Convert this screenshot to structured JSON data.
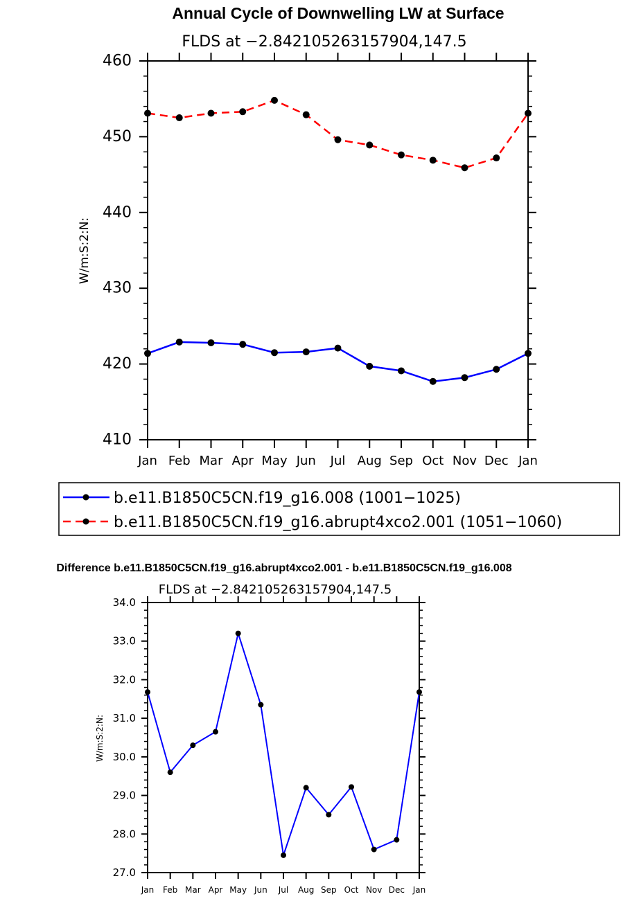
{
  "chart_data": [
    {
      "type": "line",
      "title": "Annual Cycle of Downwelling LW at Surface",
      "subtitle": "FLDS at −2.842105263157904,147.5",
      "xlabel": "",
      "ylabel": "W/m:S:2:N:",
      "categories": [
        "Jan",
        "Feb",
        "Mar",
        "Apr",
        "May",
        "Jun",
        "Jul",
        "Aug",
        "Sep",
        "Oct",
        "Nov",
        "Dec",
        "Jan"
      ],
      "ylim": [
        410,
        460
      ],
      "yticks": [
        410,
        420,
        430,
        440,
        450,
        460
      ],
      "yticklabels": [
        "410",
        "420",
        "430",
        "440",
        "450",
        "460"
      ],
      "grid": false,
      "legend_position": "bottom",
      "series": [
        {
          "name": "b.e11.B1850C5CN.f19_g16.008 (1001−1025)",
          "color": "#0000ff",
          "dash": "solid",
          "values": [
            421.4,
            422.9,
            422.8,
            422.6,
            421.5,
            421.6,
            422.1,
            419.7,
            419.1,
            417.7,
            418.2,
            419.3,
            421.4
          ]
        },
        {
          "name": "b.e11.B1850C5CN.f19_g16.abrupt4xco2.001 (1051−1060)",
          "color": "#ff0000",
          "dash": "dashed",
          "values": [
            453.1,
            452.5,
            453.1,
            453.3,
            454.8,
            452.9,
            449.6,
            448.9,
            447.6,
            446.9,
            445.9,
            447.2,
            453.1
          ]
        }
      ]
    },
    {
      "type": "line",
      "title": "Difference b.e11.B1850C5CN.f19_g16.abrupt4xco2.001 - b.e11.B1850C5CN.f19_g16.008",
      "subtitle": "FLDS at −2.842105263157904,147.5",
      "xlabel": "",
      "ylabel": "W/m:S:2:N:",
      "categories": [
        "Jan",
        "Feb",
        "Mar",
        "Apr",
        "May",
        "Jun",
        "Jul",
        "Aug",
        "Sep",
        "Oct",
        "Nov",
        "Dec",
        "Jan"
      ],
      "ylim": [
        27.0,
        34.0
      ],
      "yticks": [
        27,
        28,
        29,
        30,
        31,
        32,
        33,
        34
      ],
      "yticklabels": [
        "27.0",
        "28.0",
        "29.0",
        "30.0",
        "31.0",
        "32.0",
        "33.0",
        "34.0"
      ],
      "grid": false,
      "series": [
        {
          "name": "Difference",
          "color": "#0000ff",
          "dash": "solid",
          "values": [
            31.68,
            29.6,
            30.3,
            30.65,
            33.2,
            31.35,
            27.45,
            29.2,
            28.5,
            29.22,
            27.6,
            27.85,
            31.68
          ]
        }
      ]
    }
  ]
}
